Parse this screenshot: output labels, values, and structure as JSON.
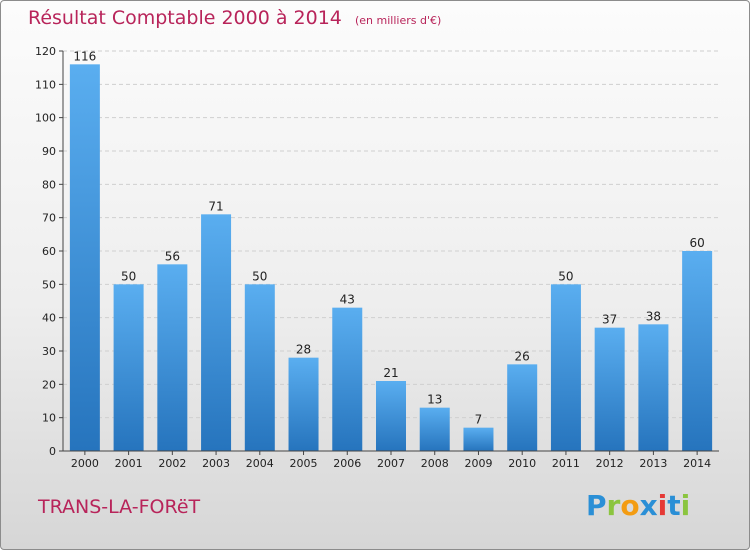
{
  "header": {
    "title": "Résultat Comptable 2000 à 2014",
    "subtitle": "(en milliers d'€)"
  },
  "footer": {
    "commune": "TRANS-LA-FORëT",
    "logo": {
      "letters": [
        "P",
        "r",
        "o",
        "x",
        "i",
        "t",
        "i"
      ],
      "colors": [
        "#2a8fd6",
        "#8bc53f",
        "#f39c12",
        "#2a8fd6",
        "#e53935",
        "#2a8fd6",
        "#8bc53f"
      ]
    }
  },
  "chart_data": {
    "type": "bar",
    "title": "Résultat Comptable 2000 à 2014",
    "subtitle": "(en milliers d'€)",
    "categories": [
      "2000",
      "2001",
      "2002",
      "2003",
      "2004",
      "2005",
      "2006",
      "2007",
      "2008",
      "2009",
      "2010",
      "2011",
      "2012",
      "2013",
      "2014"
    ],
    "values": [
      116,
      50,
      56,
      71,
      50,
      28,
      43,
      21,
      13,
      7,
      26,
      50,
      37,
      38,
      60
    ],
    "ylim": [
      0,
      120
    ],
    "yticks": [
      0,
      10,
      20,
      30,
      40,
      50,
      60,
      70,
      80,
      90,
      100,
      110,
      120
    ],
    "grid": true,
    "bar_color": "#3d8fd6"
  }
}
